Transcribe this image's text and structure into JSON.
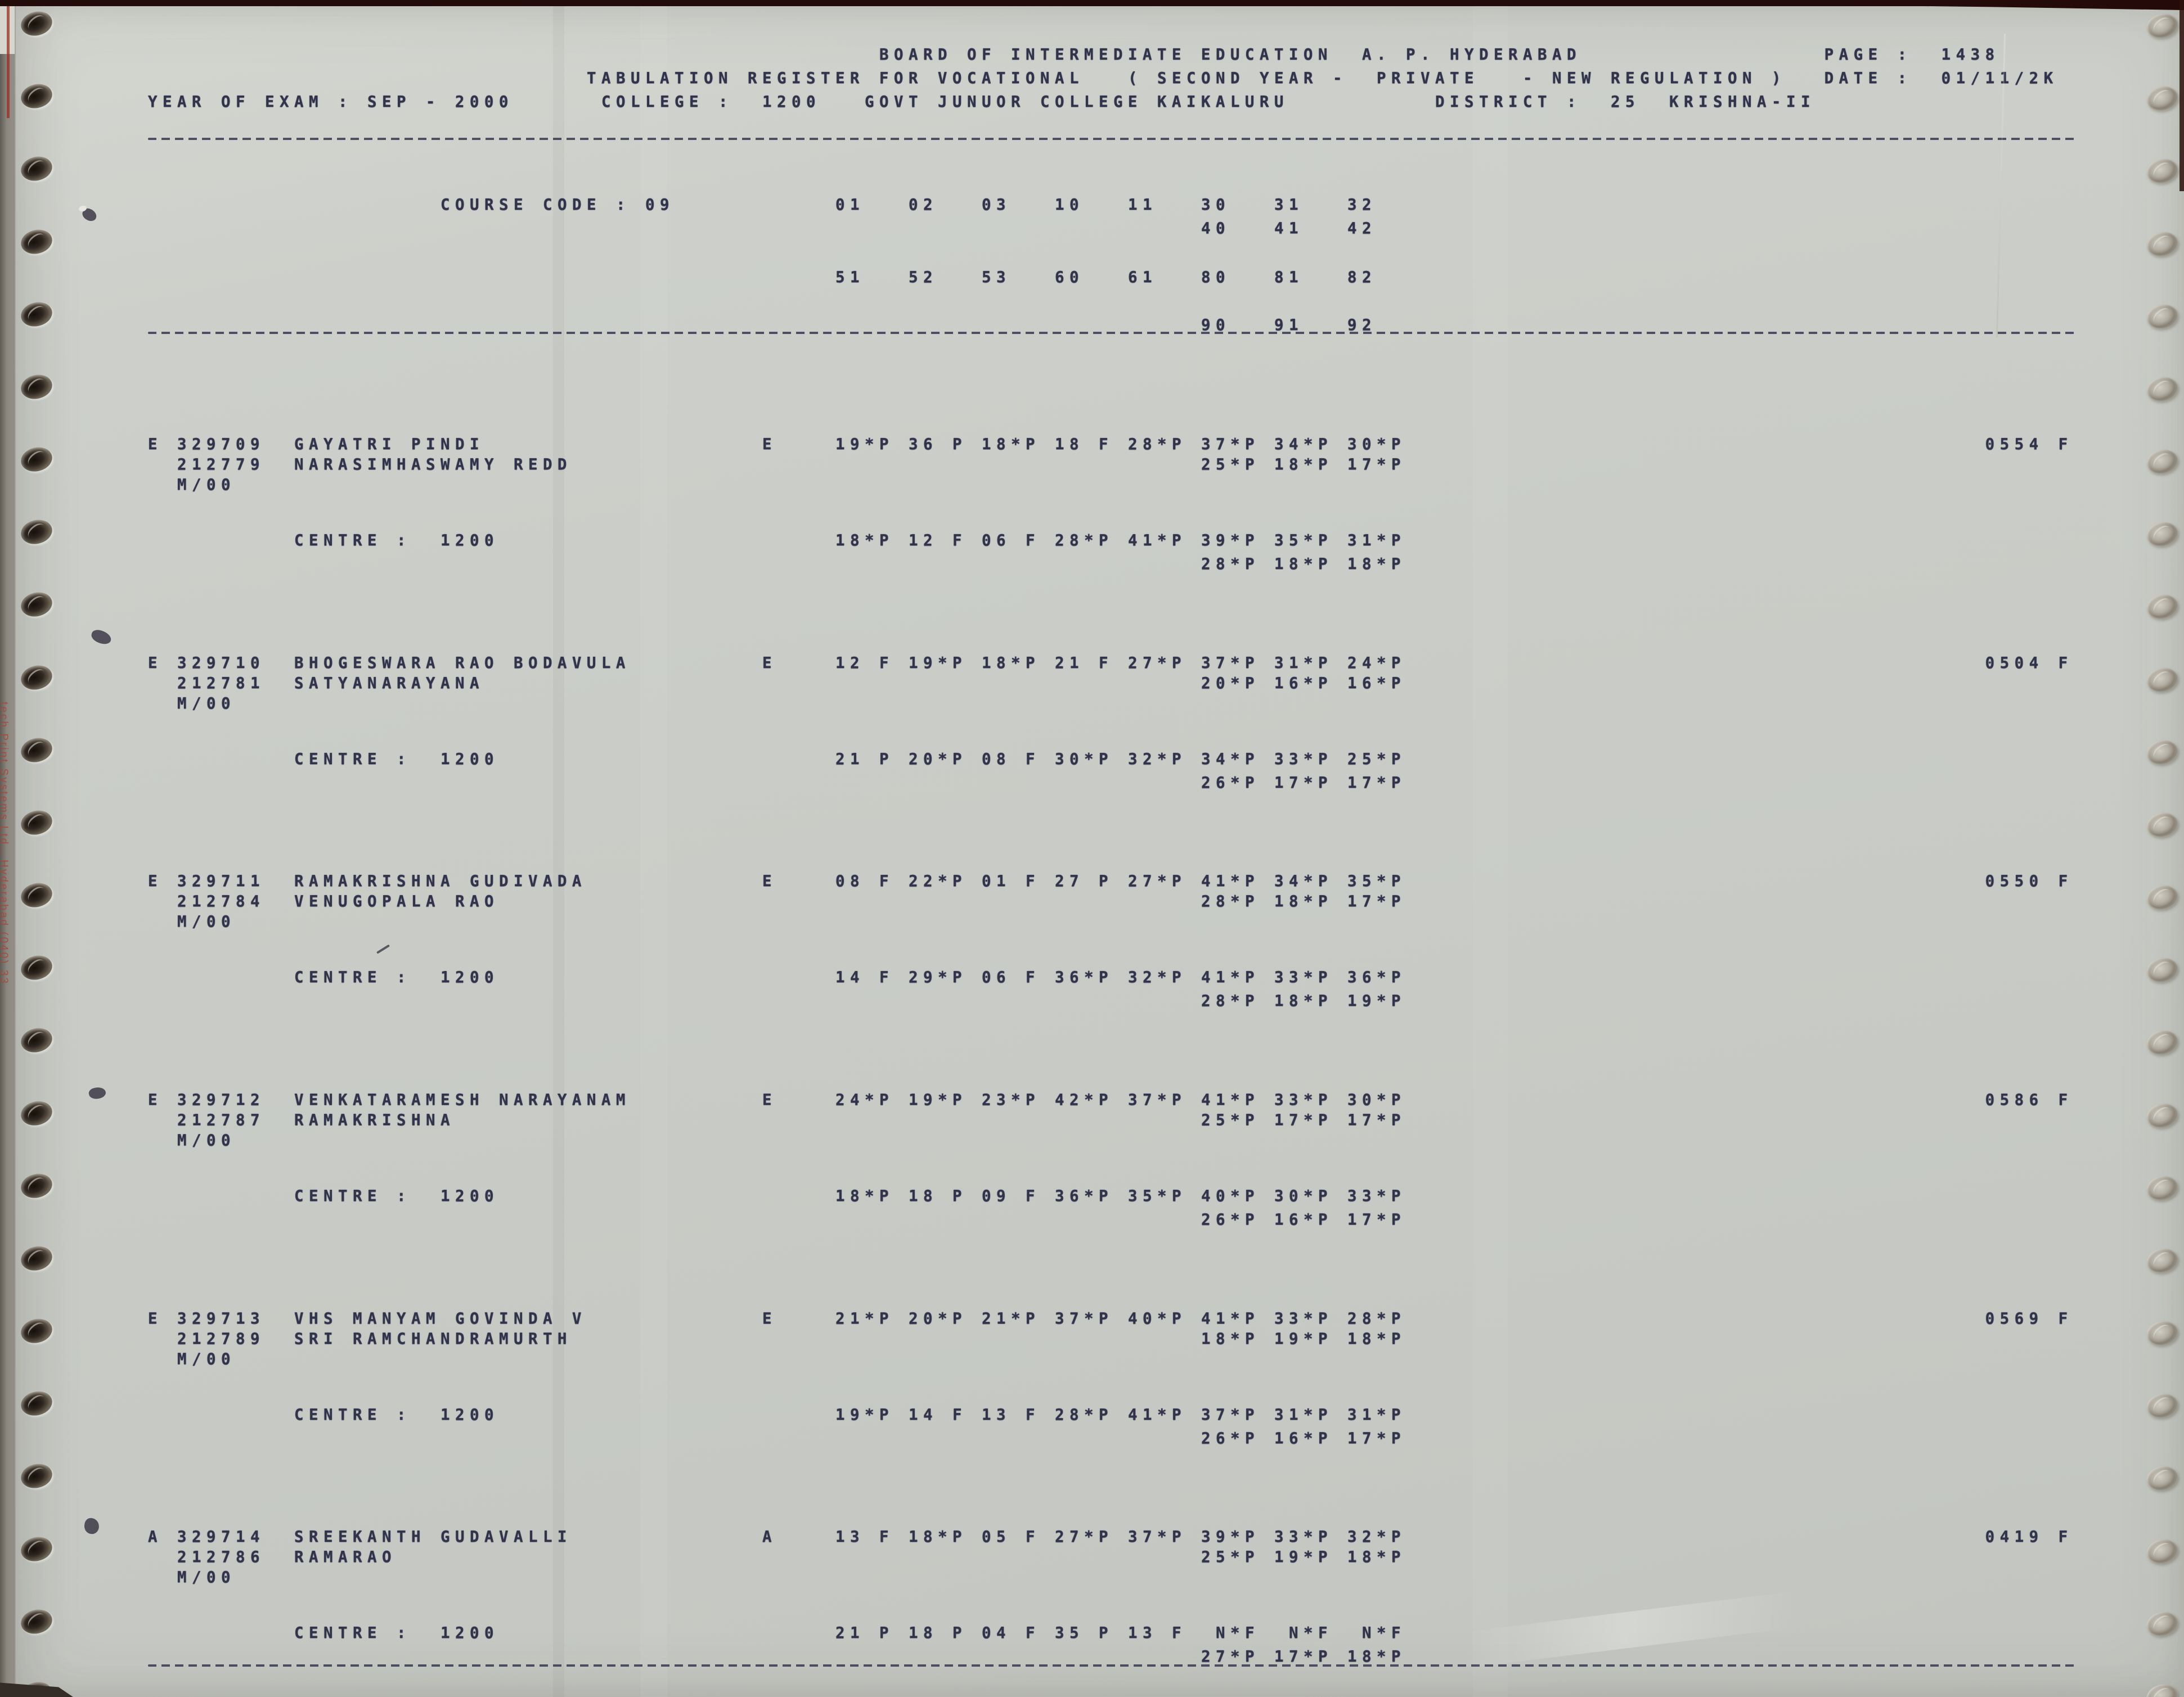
{
  "colors": {
    "paper": "#cbcec8",
    "ink": "#30334a",
    "edge_red": "#a8453a",
    "tear_band": "#220b08"
  },
  "edge_text": "tech Print Systems Ltd., Hyderabad (040) 33",
  "header": {
    "board": "BOARD OF INTERMEDIATE EDUCATION",
    "region": "A. P.",
    "city": "HYDERABAD",
    "page_label": "PAGE :",
    "page_value": "1438",
    "register": "TABULATION REGISTER FOR VOCATIONAL",
    "year_type": "( SECOND YEAR -",
    "category": "PRIVATE",
    "regulation": "- NEW REGULATION )",
    "date_label": "DATE :",
    "date_value": "01/11/2K",
    "year_of_exam": "YEAR OF EXAM : SEP - 2000",
    "college_label": "COLLEGE :",
    "college_code": "1200",
    "college_name": "GOVT JUNUOR COLLEGE KAIKALURU",
    "district_label": "DISTRICT :",
    "district_code": "25",
    "district_name": "KRISHNA-II"
  },
  "course": {
    "label": "COURSE CODE : 09",
    "row1": [
      "01",
      "02",
      "03",
      "10",
      "11",
      "30",
      "31",
      "32"
    ],
    "row1b": [
      "40",
      "41",
      "42"
    ],
    "row2": [
      "51",
      "52",
      "53",
      "60",
      "61",
      "80",
      "81",
      "82"
    ],
    "row2b": [
      "90",
      "91",
      "92"
    ]
  },
  "labels": {
    "centre": "CENTRE :"
  },
  "records": [
    {
      "flag": "E",
      "roll": "329709",
      "name": "GAYATRI PINDI",
      "number2": "212779",
      "guardian": "NARASIMHASWAMY REDD",
      "medium_line": "M/00",
      "lang": "E",
      "marks1": [
        "19*P",
        "36 P",
        "18*P",
        "18 F",
        "28*P",
        "37*P",
        "34*P",
        "30*P"
      ],
      "marks2": [
        "25*P",
        "18*P",
        "17*P"
      ],
      "total": "0554 F",
      "centre_code": "1200",
      "centre_marks1": [
        "18*P",
        "12 F",
        "06 F",
        "28*P",
        "41*P",
        "39*P",
        "35*P",
        "31*P"
      ],
      "centre_marks2": [
        "28*P",
        "18*P",
        "18*P"
      ]
    },
    {
      "flag": "E",
      "roll": "329710",
      "name": "BHOGESWARA RAO BODAVULA",
      "number2": "212781",
      "guardian": "SATYANARAYANA",
      "medium_line": "M/00",
      "lang": "E",
      "marks1": [
        "12 F",
        "19*P",
        "18*P",
        "21 F",
        "27*P",
        "37*P",
        "31*P",
        "24*P"
      ],
      "marks2": [
        "20*P",
        "16*P",
        "16*P"
      ],
      "total": "0504 F",
      "centre_code": "1200",
      "centre_marks1": [
        "21 P",
        "20*P",
        "08 F",
        "30*P",
        "32*P",
        "34*P",
        "33*P",
        "25*P"
      ],
      "centre_marks2": [
        "26*P",
        "17*P",
        "17*P"
      ]
    },
    {
      "flag": "E",
      "roll": "329711",
      "name": "RAMAKRISHNA GUDIVADA",
      "number2": "212784",
      "guardian": "VENUGOPALA RAO",
      "medium_line": "M/00",
      "lang": "E",
      "marks1": [
        "08 F",
        "22*P",
        "01 F",
        "27 P",
        "27*P",
        "41*P",
        "34*P",
        "35*P"
      ],
      "marks2": [
        "28*P",
        "18*P",
        "17*P"
      ],
      "total": "0550 F",
      "centre_code": "1200",
      "centre_marks1": [
        "14 F",
        "29*P",
        "06 F",
        "36*P",
        "32*P",
        "41*P",
        "33*P",
        "36*P"
      ],
      "centre_marks2": [
        "28*P",
        "18*P",
        "19*P"
      ]
    },
    {
      "flag": "E",
      "roll": "329712",
      "name": "VENKATARAMESH NARAYANAM",
      "number2": "212787",
      "guardian": "RAMAKRISHNA",
      "medium_line": "M/00",
      "lang": "E",
      "marks1": [
        "24*P",
        "19*P",
        "23*P",
        "42*P",
        "37*P",
        "41*P",
        "33*P",
        "30*P"
      ],
      "marks2": [
        "25*P",
        "17*P",
        "17*P"
      ],
      "total": "0586 F",
      "centre_code": "1200",
      "centre_marks1": [
        "18*P",
        "18 P",
        "09 F",
        "36*P",
        "35*P",
        "40*P",
        "30*P",
        "33*P"
      ],
      "centre_marks2": [
        "26*P",
        "16*P",
        "17*P"
      ]
    },
    {
      "flag": "E",
      "roll": "329713",
      "name": "VHS MANYAM GOVINDA V",
      "number2": "212789",
      "guardian": "SRI RAMCHANDRAMURTH",
      "medium_line": "M/00",
      "lang": "E",
      "marks1": [
        "21*P",
        "20*P",
        "21*P",
        "37*P",
        "40*P",
        "41*P",
        "33*P",
        "28*P"
      ],
      "marks2": [
        "18*P",
        "19*P",
        "18*P"
      ],
      "total": "0569 F",
      "centre_code": "1200",
      "centre_marks1": [
        "19*P",
        "14 F",
        "13 F",
        "28*P",
        "41*P",
        "37*P",
        "31*P",
        "31*P"
      ],
      "centre_marks2": [
        "26*P",
        "16*P",
        "17*P"
      ]
    },
    {
      "flag": "A",
      "roll": "329714",
      "name": "SREEKANTH GUDAVALLI",
      "number2": "212786",
      "guardian": "RAMARAO",
      "medium_line": "M/00",
      "lang": "A",
      "marks1": [
        "13 F",
        "18*P",
        "05 F",
        "27*P",
        "37*P",
        "39*P",
        "33*P",
        "32*P"
      ],
      "marks2": [
        "25*P",
        "19*P",
        "18*P"
      ],
      "total": "0419 F",
      "centre_code": "1200",
      "centre_marks1": [
        "21 P",
        "18 P",
        "04 F",
        "35 P",
        "13 F",
        " N*F",
        " N*F",
        " N*F"
      ],
      "centre_marks2": [
        "27*P",
        "17*P",
        "18*P"
      ]
    }
  ]
}
